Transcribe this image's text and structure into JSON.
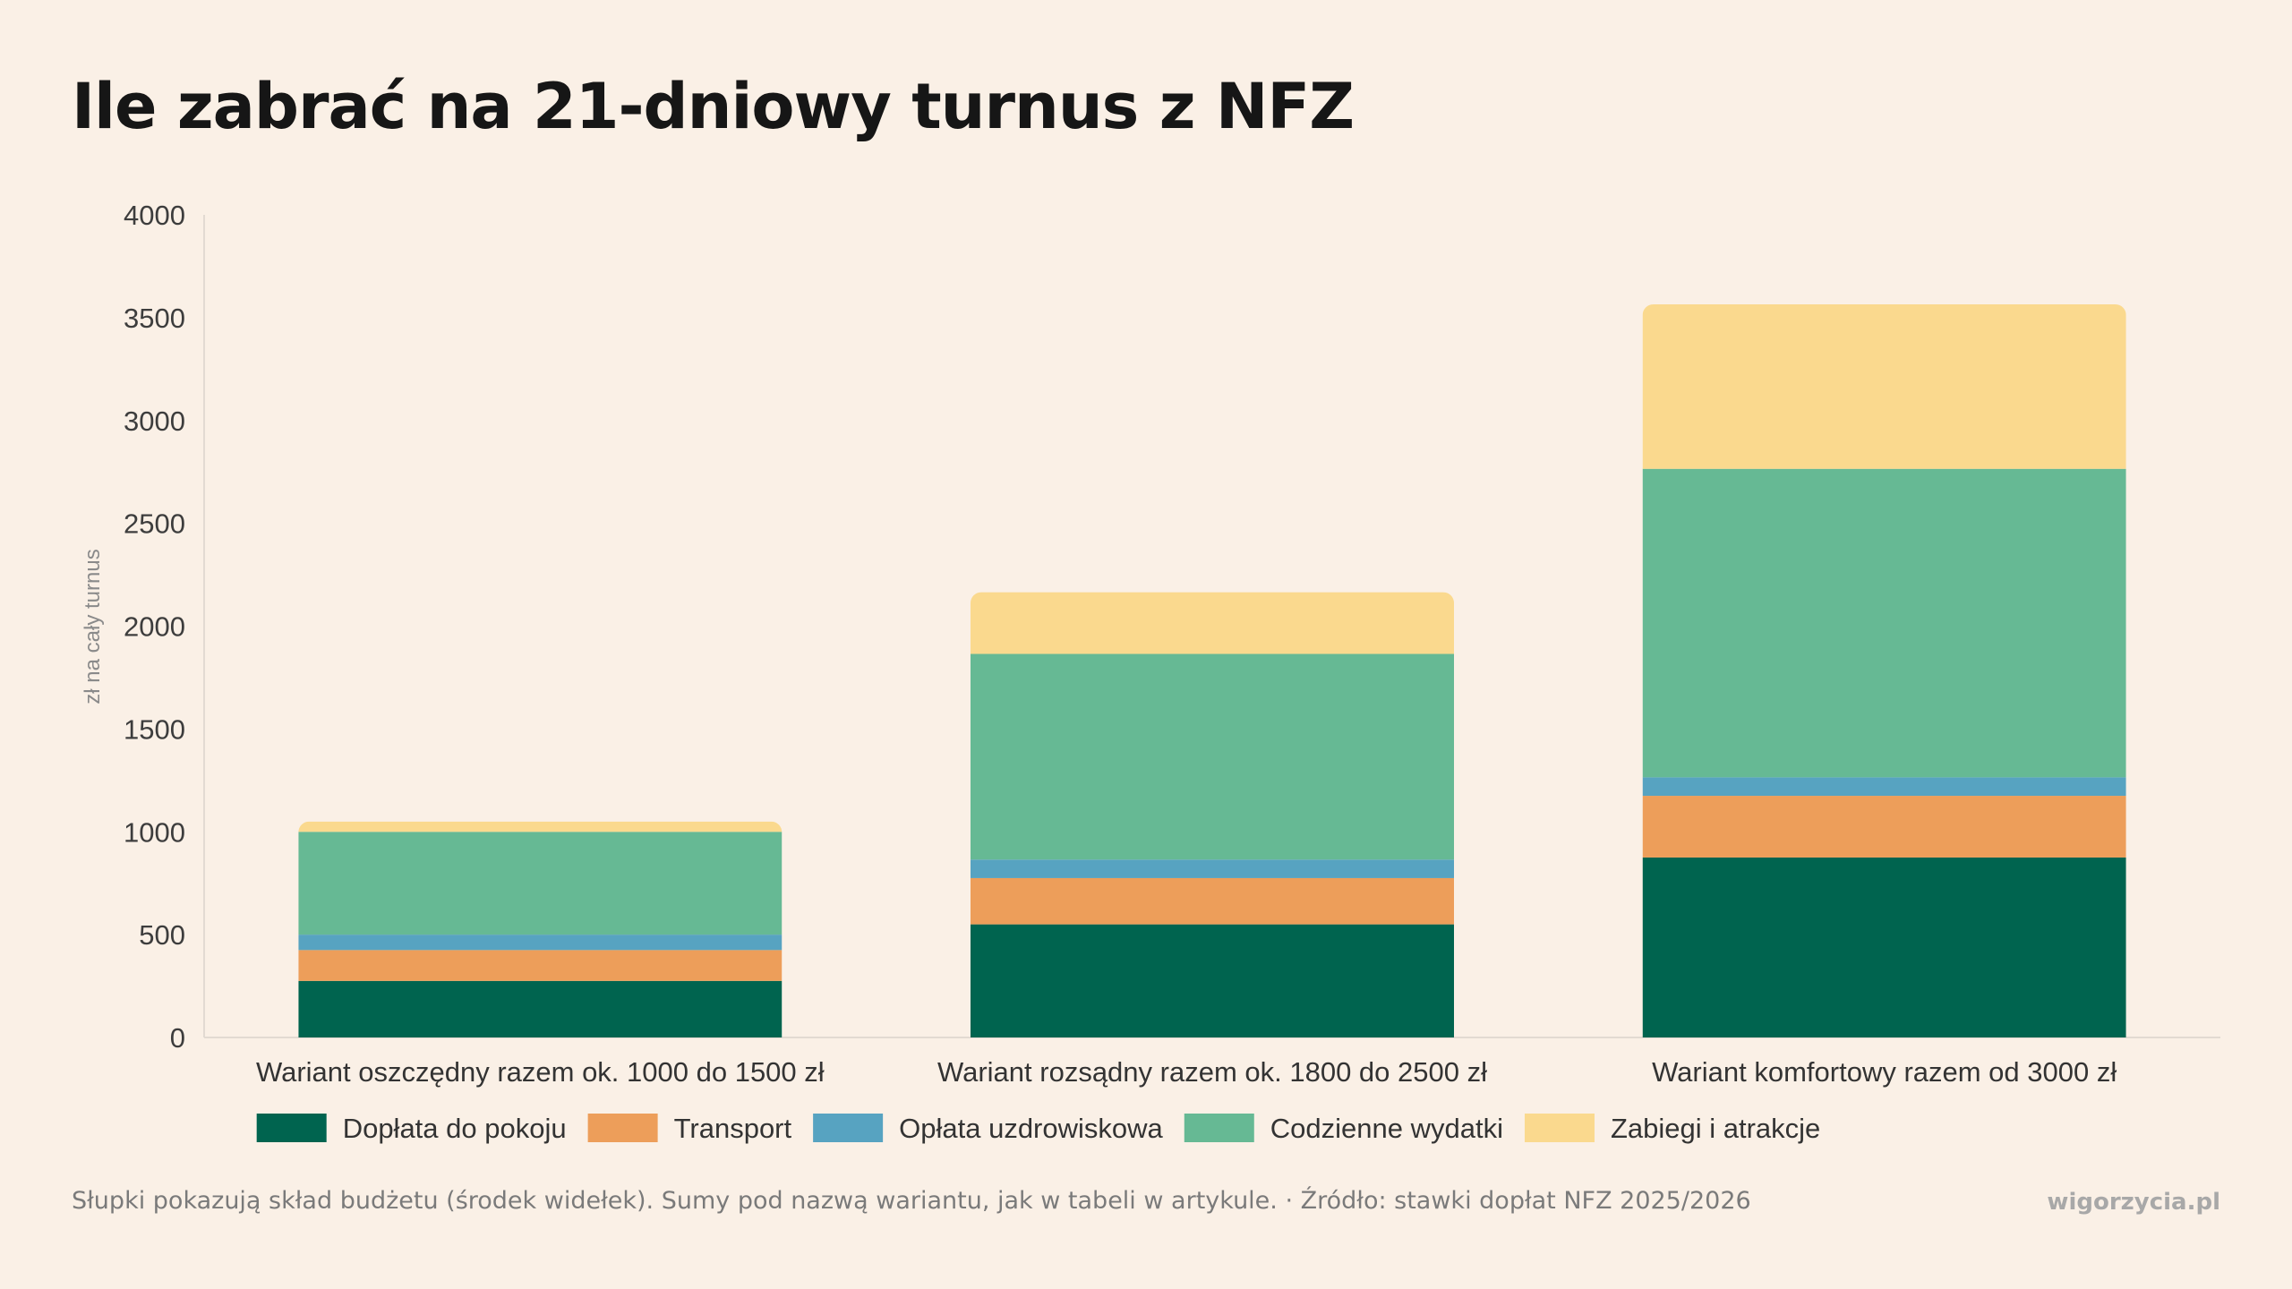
{
  "title": "Ile zabrać na 21-dniowy turnus z NFZ",
  "footer": {
    "note": "Słupki pokazują skład budżetu (środek widełek). Sumy pod nazwą wariantu, jak w tabeli w artykule. · Źródło: stawki dopłat NFZ 2025/2026",
    "brand": "wigorzycia.pl"
  },
  "chart_data": {
    "type": "bar",
    "stacked": true,
    "title": "Ile zabrać na 21-dniowy turnus z NFZ",
    "xlabel": "",
    "ylabel": "zł na cały turnus",
    "ylim": [
      0,
      4000
    ],
    "yticks": [
      0,
      500,
      1000,
      1500,
      2000,
      2500,
      3000,
      3500,
      4000
    ],
    "grid": false,
    "legend_position": "bottom",
    "categories": [
      "Wariant oszczędny razem ok. 1000 do 1500 zł",
      "Wariant rozsądny razem ok. 1800 do 2500 zł",
      "Wariant komfortowy razem od 3000 zł"
    ],
    "series": [
      {
        "name": "Dopłata do pokoju",
        "color": "#00644f",
        "values": [
          275,
          550,
          875
        ]
      },
      {
        "name": "Transport",
        "color": "#ed9e5a",
        "values": [
          150,
          225,
          300
        ]
      },
      {
        "name": "Opłata uzdrowiskowa",
        "color": "#57a3c1",
        "values": [
          75,
          90,
          90
        ]
      },
      {
        "name": "Codzienne wydatki",
        "color": "#66b994",
        "values": [
          500,
          1000,
          1500
        ]
      },
      {
        "name": "Zabiegi i atrakcje",
        "color": "#fad98e",
        "values": [
          50,
          300,
          800
        ]
      }
    ]
  }
}
